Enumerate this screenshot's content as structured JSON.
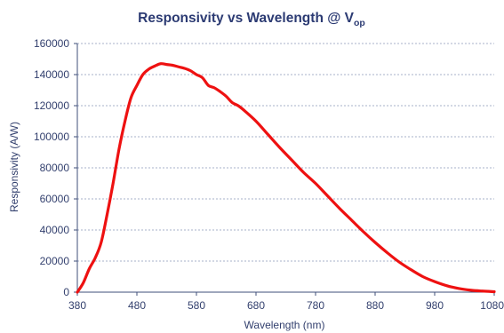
{
  "chart_data": {
    "type": "line",
    "title": "Responsivity vs Wavelength @ V",
    "title_subscript": "op",
    "xlabel": "Wavelength (nm)",
    "ylabel": "Responsivity (A/W)",
    "xlim": [
      380,
      1080
    ],
    "ylim": [
      0,
      160000
    ],
    "x_ticks": [
      380,
      480,
      580,
      680,
      780,
      880,
      980,
      1080
    ],
    "y_ticks": [
      0,
      20000,
      40000,
      60000,
      80000,
      100000,
      120000,
      140000,
      160000
    ],
    "grid": "horizontal-dashed",
    "legend": "none",
    "colors": {
      "line": "#ee1111",
      "axis": "#3f4f7a",
      "text": "#33406e",
      "title": "#2c3b73",
      "grid": "#8a96b8"
    },
    "series": [
      {
        "x": [
          380,
          390,
          400,
          410,
          420,
          430,
          440,
          450,
          460,
          470,
          480,
          490,
          500,
          510,
          520,
          530,
          540,
          550,
          560,
          570,
          580,
          590,
          600,
          610,
          620,
          630,
          640,
          650,
          660,
          680,
          700,
          720,
          740,
          760,
          780,
          800,
          820,
          840,
          860,
          880,
          900,
          920,
          940,
          960,
          980,
          1000,
          1020,
          1040,
          1060,
          1080
        ],
        "y": [
          0,
          6000,
          15000,
          22000,
          32000,
          50000,
          70000,
          92000,
          110000,
          125000,
          133000,
          140000,
          143500,
          145500,
          147000,
          146500,
          146000,
          145000,
          144000,
          142500,
          140000,
          138000,
          133000,
          131500,
          129000,
          126000,
          122000,
          120000,
          117000,
          110000,
          101500,
          93000,
          85000,
          77000,
          70000,
          62000,
          54000,
          46500,
          39000,
          32000,
          25500,
          19500,
          14500,
          10000,
          6800,
          4200,
          2400,
          1300,
          700,
          300
        ]
      }
    ]
  }
}
